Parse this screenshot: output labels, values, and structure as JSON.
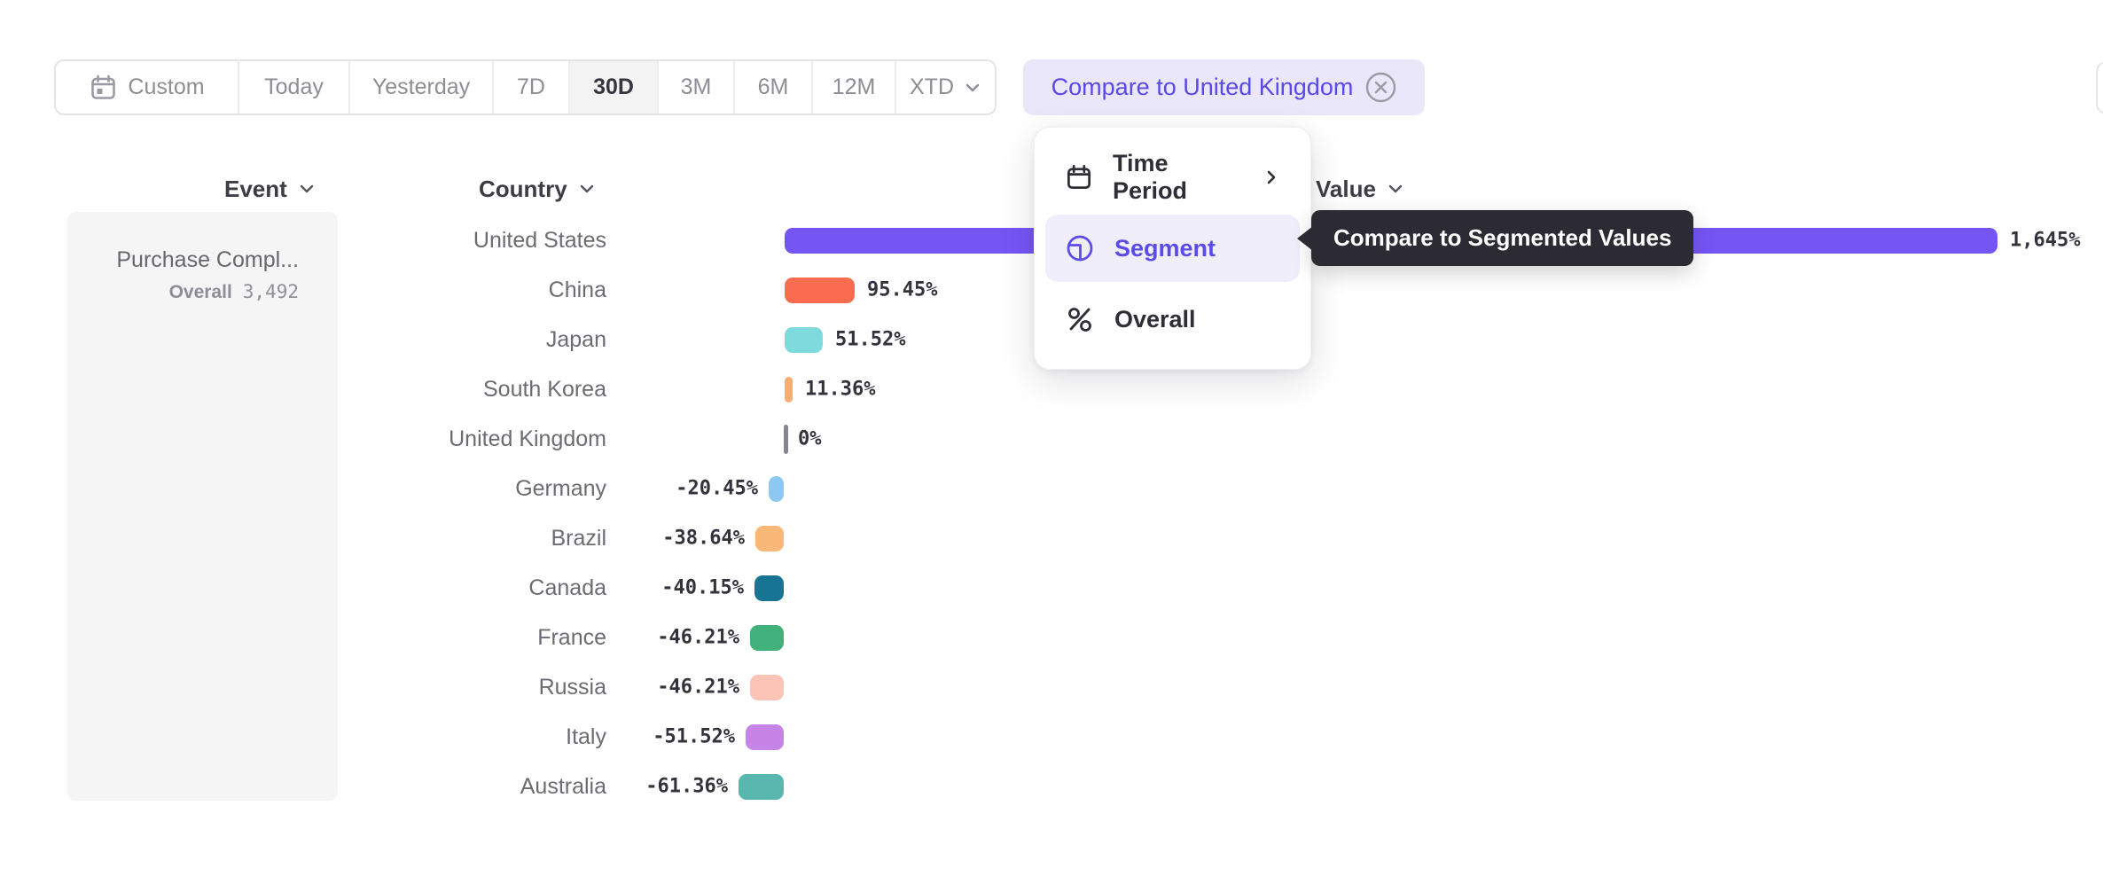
{
  "toolbar": {
    "date_ranges": [
      {
        "label": "Custom",
        "icon": "calendar-icon",
        "selected": false
      },
      {
        "label": "Today",
        "selected": false
      },
      {
        "label": "Yesterday",
        "selected": false
      },
      {
        "label": "7D",
        "selected": false
      },
      {
        "label": "30D",
        "selected": true
      },
      {
        "label": "3M",
        "selected": false
      },
      {
        "label": "6M",
        "selected": false
      },
      {
        "label": "12M",
        "selected": false
      },
      {
        "label": "XTD",
        "icon": "chevron-down-icon",
        "selected": false
      }
    ],
    "compare_button": {
      "label": "Compare to United Kingdom",
      "icon": "close-circle-icon"
    }
  },
  "columns": {
    "event": "Event",
    "country": "Country",
    "value": "Value"
  },
  "event_card": {
    "title": "Purchase Compl...",
    "overall_label": "Overall",
    "overall_value": "3,492"
  },
  "menu": {
    "items": [
      {
        "label": "Time Period",
        "icon": "calendar-icon",
        "has_submenu": true,
        "selected": false
      },
      {
        "label": "Segment",
        "icon": "segment-icon",
        "has_submenu": false,
        "selected": true
      },
      {
        "label": "Overall",
        "icon": "percent-icon",
        "has_submenu": false,
        "selected": false
      }
    ]
  },
  "tooltip": {
    "text": "Compare to Segmented Values"
  },
  "colors": {
    "accent_purple": "#5B4BE9",
    "compare_chip_bg": "#EAE7FB",
    "menu_selected_bg": "#F1EEFC",
    "tooltip_bg": "#2C2B33",
    "selected_segment_bg": "#F3F3F4",
    "card_bg": "#F5F5F6",
    "zero_tick": "#8B8490"
  },
  "chart_data": {
    "type": "bar",
    "orientation": "horizontal",
    "categories": [
      "United States",
      "China",
      "Japan",
      "South Korea",
      "United Kingdom",
      "Germany",
      "Brazil",
      "Canada",
      "France",
      "Russia",
      "Italy",
      "Australia"
    ],
    "values": [
      1645,
      95.45,
      51.52,
      11.36,
      0,
      -20.45,
      -38.64,
      -40.15,
      -46.21,
      -46.21,
      -51.52,
      -61.36
    ],
    "value_labels": [
      "1,645%",
      "95.45%",
      "51.52%",
      "11.36%",
      "0%",
      "-20.45%",
      "-38.64%",
      "-40.15%",
      "-46.21%",
      "-46.21%",
      "-51.52%",
      "-61.36%"
    ],
    "bar_colors": [
      "#7655F5",
      "#FA6C50",
      "#7EDADD",
      "#F8AE73",
      "#8B8490",
      "#8CC8F1",
      "#F9B877",
      "#177593",
      "#41B07A",
      "#FBC4B6",
      "#C684E6",
      "#58B7AF"
    ],
    "dotted_pattern": [
      false,
      false,
      false,
      false,
      false,
      true,
      true,
      false,
      false,
      false,
      false,
      false
    ],
    "unit": "%",
    "xlim": [
      -62,
      1645
    ],
    "baseline_category": "United Kingdom",
    "grid": false,
    "legend": "none"
  }
}
